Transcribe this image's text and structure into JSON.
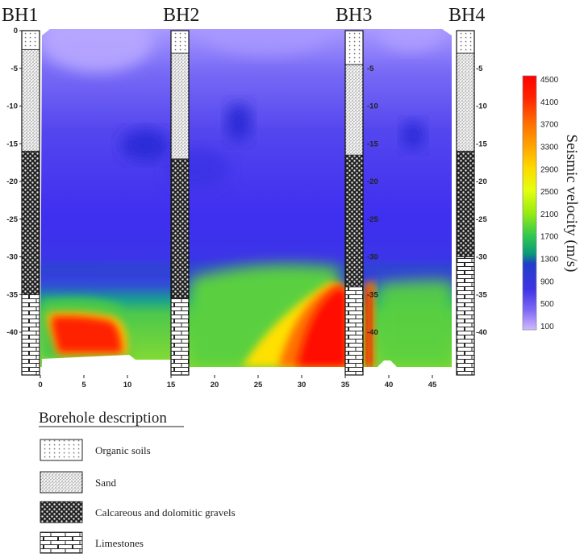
{
  "boreholes": [
    {
      "name": "BH1",
      "x": 0,
      "layers": [
        {
          "material": "organic",
          "top": 0,
          "bottom": -2.5
        },
        {
          "material": "sand",
          "top": -2.5,
          "bottom": -16
        },
        {
          "material": "gravel",
          "top": -16,
          "bottom": -35
        },
        {
          "material": "limestone",
          "top": -35,
          "bottom": -44
        }
      ]
    },
    {
      "name": "BH2",
      "x": 16,
      "layers": [
        {
          "material": "organic",
          "top": 0,
          "bottom": -3
        },
        {
          "material": "sand",
          "top": -3,
          "bottom": -17
        },
        {
          "material": "gravel",
          "top": -17,
          "bottom": -35.5
        },
        {
          "material": "limestone",
          "top": -35.5,
          "bottom": -44
        }
      ]
    },
    {
      "name": "BH3",
      "x": 36,
      "layers": [
        {
          "material": "organic",
          "top": 0,
          "bottom": -4.5
        },
        {
          "material": "sand",
          "top": -4.5,
          "bottom": -16.5
        },
        {
          "material": "gravel",
          "top": -16.5,
          "bottom": -34
        },
        {
          "material": "limestone",
          "top": -34,
          "bottom": -44
        }
      ]
    },
    {
      "name": "BH4",
      "x": 49,
      "layers": [
        {
          "material": "organic",
          "top": 0,
          "bottom": -3
        },
        {
          "material": "sand",
          "top": -3,
          "bottom": -16
        },
        {
          "material": "gravel",
          "top": -16,
          "bottom": -30
        },
        {
          "material": "limestone",
          "top": -30,
          "bottom": -44
        }
      ]
    }
  ],
  "axes": {
    "x_ticks": [
      0,
      5,
      10,
      15,
      20,
      25,
      30,
      35,
      40,
      45
    ],
    "depth_ticks": [
      0,
      -5,
      -10,
      -15,
      -20,
      -25,
      -30,
      -35,
      -40
    ],
    "depth_ticks_side": [
      -5,
      -10,
      -15,
      -20,
      -25,
      -30,
      -35,
      -40
    ]
  },
  "colorbar": {
    "title": "Seismic velocity (m/s)",
    "labels": [
      "4500",
      "4100",
      "3700",
      "3300",
      "2900",
      "2500",
      "2100",
      "1700",
      "1300",
      "900",
      "500",
      "100"
    ],
    "colors": [
      "#ff0000",
      "#ff3000",
      "#ff7000",
      "#ffa800",
      "#ffe000",
      "#ecff00",
      "#a8f000",
      "#40d040",
      "#00a070",
      "#1a30c8",
      "#4a30e0",
      "#8a70f0",
      "#c8b0ff"
    ]
  },
  "legend": {
    "heading": "Borehole description",
    "items": [
      {
        "pattern": "organic",
        "label": "Organic soils"
      },
      {
        "pattern": "sand",
        "label": "Sand"
      },
      {
        "pattern": "gravel",
        "label": "Calcareous and dolomitic gravels"
      },
      {
        "pattern": "limestone",
        "label": "Limestones"
      }
    ]
  }
}
